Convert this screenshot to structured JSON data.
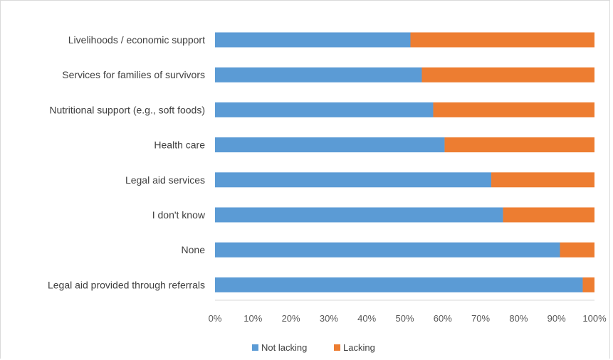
{
  "chart_data": {
    "type": "bar",
    "orientation": "horizontal",
    "stacked": "percent",
    "categories": [
      "Livelihoods / economic support",
      "Services for families of survivors",
      "Nutritional support (e.g., soft foods)",
      "Health care",
      "Legal aid services",
      "I don't know",
      "None",
      "Legal aid provided through referrals"
    ],
    "series": [
      {
        "name": "Not lacking",
        "color": "#5b9bd5",
        "values": [
          51.5,
          54.5,
          57.5,
          60.5,
          72.8,
          75.9,
          90.9,
          96.9
        ]
      },
      {
        "name": "Lacking",
        "color": "#ed7d31",
        "values": [
          48.5,
          45.5,
          42.5,
          39.5,
          27.2,
          24.1,
          9.1,
          3.1
        ]
      }
    ],
    "x_ticks": [
      "0%",
      "10%",
      "20%",
      "30%",
      "40%",
      "50%",
      "60%",
      "70%",
      "80%",
      "90%",
      "100%"
    ],
    "xlim": [
      0,
      100
    ],
    "grid": false,
    "legend_position": "bottom"
  }
}
